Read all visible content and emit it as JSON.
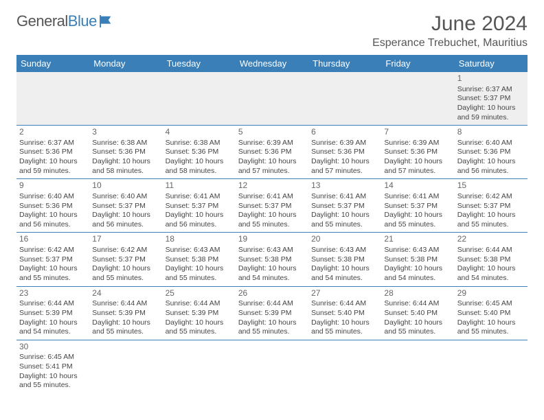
{
  "logo": {
    "text_general": "General",
    "text_blue": "Blue"
  },
  "title": "June 2024",
  "location": "Esperance Trebuchet, Mauritius",
  "colors": {
    "header_bg": "#3a7fb8",
    "header_text": "#ffffff",
    "empty_bg": "#efefef",
    "row_border": "#3a7fb8",
    "body_text": "#444",
    "title_text": "#555"
  },
  "weekdays": [
    "Sunday",
    "Monday",
    "Tuesday",
    "Wednesday",
    "Thursday",
    "Friday",
    "Saturday"
  ],
  "weeks": [
    [
      null,
      null,
      null,
      null,
      null,
      null,
      {
        "d": "1",
        "sr": "6:37 AM",
        "ss": "5:37 PM",
        "dl": "10 hours and 59 minutes."
      }
    ],
    [
      {
        "d": "2",
        "sr": "6:37 AM",
        "ss": "5:36 PM",
        "dl": "10 hours and 59 minutes."
      },
      {
        "d": "3",
        "sr": "6:38 AM",
        "ss": "5:36 PM",
        "dl": "10 hours and 58 minutes."
      },
      {
        "d": "4",
        "sr": "6:38 AM",
        "ss": "5:36 PM",
        "dl": "10 hours and 58 minutes."
      },
      {
        "d": "5",
        "sr": "6:39 AM",
        "ss": "5:36 PM",
        "dl": "10 hours and 57 minutes."
      },
      {
        "d": "6",
        "sr": "6:39 AM",
        "ss": "5:36 PM",
        "dl": "10 hours and 57 minutes."
      },
      {
        "d": "7",
        "sr": "6:39 AM",
        "ss": "5:36 PM",
        "dl": "10 hours and 57 minutes."
      },
      {
        "d": "8",
        "sr": "6:40 AM",
        "ss": "5:36 PM",
        "dl": "10 hours and 56 minutes."
      }
    ],
    [
      {
        "d": "9",
        "sr": "6:40 AM",
        "ss": "5:36 PM",
        "dl": "10 hours and 56 minutes."
      },
      {
        "d": "10",
        "sr": "6:40 AM",
        "ss": "5:37 PM",
        "dl": "10 hours and 56 minutes."
      },
      {
        "d": "11",
        "sr": "6:41 AM",
        "ss": "5:37 PM",
        "dl": "10 hours and 56 minutes."
      },
      {
        "d": "12",
        "sr": "6:41 AM",
        "ss": "5:37 PM",
        "dl": "10 hours and 55 minutes."
      },
      {
        "d": "13",
        "sr": "6:41 AM",
        "ss": "5:37 PM",
        "dl": "10 hours and 55 minutes."
      },
      {
        "d": "14",
        "sr": "6:41 AM",
        "ss": "5:37 PM",
        "dl": "10 hours and 55 minutes."
      },
      {
        "d": "15",
        "sr": "6:42 AM",
        "ss": "5:37 PM",
        "dl": "10 hours and 55 minutes."
      }
    ],
    [
      {
        "d": "16",
        "sr": "6:42 AM",
        "ss": "5:37 PM",
        "dl": "10 hours and 55 minutes."
      },
      {
        "d": "17",
        "sr": "6:42 AM",
        "ss": "5:37 PM",
        "dl": "10 hours and 55 minutes."
      },
      {
        "d": "18",
        "sr": "6:43 AM",
        "ss": "5:38 PM",
        "dl": "10 hours and 55 minutes."
      },
      {
        "d": "19",
        "sr": "6:43 AM",
        "ss": "5:38 PM",
        "dl": "10 hours and 54 minutes."
      },
      {
        "d": "20",
        "sr": "6:43 AM",
        "ss": "5:38 PM",
        "dl": "10 hours and 54 minutes."
      },
      {
        "d": "21",
        "sr": "6:43 AM",
        "ss": "5:38 PM",
        "dl": "10 hours and 54 minutes."
      },
      {
        "d": "22",
        "sr": "6:44 AM",
        "ss": "5:38 PM",
        "dl": "10 hours and 54 minutes."
      }
    ],
    [
      {
        "d": "23",
        "sr": "6:44 AM",
        "ss": "5:39 PM",
        "dl": "10 hours and 54 minutes."
      },
      {
        "d": "24",
        "sr": "6:44 AM",
        "ss": "5:39 PM",
        "dl": "10 hours and 55 minutes."
      },
      {
        "d": "25",
        "sr": "6:44 AM",
        "ss": "5:39 PM",
        "dl": "10 hours and 55 minutes."
      },
      {
        "d": "26",
        "sr": "6:44 AM",
        "ss": "5:39 PM",
        "dl": "10 hours and 55 minutes."
      },
      {
        "d": "27",
        "sr": "6:44 AM",
        "ss": "5:40 PM",
        "dl": "10 hours and 55 minutes."
      },
      {
        "d": "28",
        "sr": "6:44 AM",
        "ss": "5:40 PM",
        "dl": "10 hours and 55 minutes."
      },
      {
        "d": "29",
        "sr": "6:45 AM",
        "ss": "5:40 PM",
        "dl": "10 hours and 55 minutes."
      }
    ],
    [
      {
        "d": "30",
        "sr": "6:45 AM",
        "ss": "5:41 PM",
        "dl": "10 hours and 55 minutes."
      },
      null,
      null,
      null,
      null,
      null,
      null
    ]
  ],
  "labels": {
    "sunrise": "Sunrise: ",
    "sunset": "Sunset: ",
    "daylight": "Daylight: "
  }
}
